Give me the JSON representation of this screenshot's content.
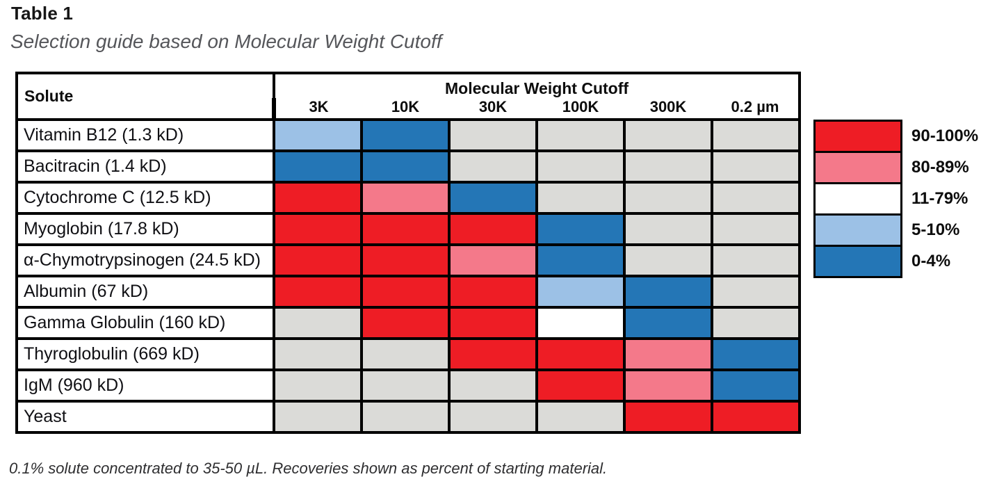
{
  "title": "Table 1",
  "subtitle": "Selection guide based on Molecular Weight Cutoff",
  "footnote": "0.1% solute concentrated to 35-50 µL. Recoveries shown as percent of starting material.",
  "table": {
    "solute_header": "Solute",
    "group_header": "Molecular Weight Cutoff",
    "columns": [
      "3K",
      "10K",
      "30K",
      "100K",
      "300K",
      "0.2 µm"
    ],
    "rows": [
      {
        "solute": "Vitamin B12 (1.3 kD)",
        "cells": [
          "5-10%",
          "0-4%",
          "n/a",
          "n/a",
          "n/a",
          "n/a"
        ]
      },
      {
        "solute": "Bacitracin (1.4 kD)",
        "cells": [
          "0-4%",
          "0-4%",
          "n/a",
          "n/a",
          "n/a",
          "n/a"
        ]
      },
      {
        "solute": "Cytochrome C (12.5 kD)",
        "cells": [
          "90-100%",
          "80-89%",
          "0-4%",
          "n/a",
          "n/a",
          "n/a"
        ]
      },
      {
        "solute": "Myoglobin (17.8 kD)",
        "cells": [
          "90-100%",
          "90-100%",
          "90-100%",
          "0-4%",
          "n/a",
          "n/a"
        ]
      },
      {
        "solute": "α-Chymotrypsinogen (24.5 kD)",
        "cells": [
          "90-100%",
          "90-100%",
          "80-89%",
          "0-4%",
          "n/a",
          "n/a"
        ]
      },
      {
        "solute": "Albumin (67 kD)",
        "cells": [
          "90-100%",
          "90-100%",
          "90-100%",
          "5-10%",
          "0-4%",
          "n/a"
        ]
      },
      {
        "solute": "Gamma Globulin (160 kD)",
        "cells": [
          "n/a",
          "90-100%",
          "90-100%",
          "11-79%",
          "0-4%",
          "n/a"
        ]
      },
      {
        "solute": "Thyroglobulin (669 kD)",
        "cells": [
          "n/a",
          "n/a",
          "90-100%",
          "90-100%",
          "80-89%",
          "0-4%"
        ]
      },
      {
        "solute": "IgM (960 kD)",
        "cells": [
          "n/a",
          "n/a",
          "n/a",
          "90-100%",
          "80-89%",
          "0-4%"
        ]
      },
      {
        "solute": "Yeast",
        "cells": [
          "n/a",
          "n/a",
          "n/a",
          "n/a",
          "90-100%",
          "90-100%"
        ]
      }
    ]
  },
  "legend": {
    "items": [
      {
        "label": "90-100%",
        "color": "#EE1D25"
      },
      {
        "label": "80-89%",
        "color": "#F4798A"
      },
      {
        "label": "11-79%",
        "color": "#FFFFFF"
      },
      {
        "label": "5-10%",
        "color": "#9CC1E6"
      },
      {
        "label": "0-4%",
        "color": "#2476B6"
      }
    ]
  },
  "colors": {
    "90-100%": "#EE1D25",
    "80-89%": "#F4798A",
    "11-79%": "#FFFFFF",
    "5-10%": "#9CC1E6",
    "0-4%": "#2476B6",
    "n/a": "#DBDBD8"
  },
  "chart_data": {
    "type": "heatmap",
    "title": "Table 1",
    "subtitle": "Selection guide based on Molecular Weight Cutoff",
    "x_label": "Molecular Weight Cutoff",
    "y_label": "Solute",
    "x_categories": [
      "3K",
      "10K",
      "30K",
      "100K",
      "300K",
      "0.2 µm"
    ],
    "y_categories": [
      "Vitamin B12 (1.3 kD)",
      "Bacitracin (1.4 kD)",
      "Cytochrome C (12.5 kD)",
      "Myoglobin (17.8 kD)",
      "α-Chymotrypsinogen (24.5 kD)",
      "Albumin (67 kD)",
      "Gamma Globulin (160 kD)",
      "Thyroglobulin (669 kD)",
      "IgM (960 kD)",
      "Yeast"
    ],
    "values": [
      [
        "5-10%",
        "0-4%",
        "n/a",
        "n/a",
        "n/a",
        "n/a"
      ],
      [
        "0-4%",
        "0-4%",
        "n/a",
        "n/a",
        "n/a",
        "n/a"
      ],
      [
        "90-100%",
        "80-89%",
        "0-4%",
        "n/a",
        "n/a",
        "n/a"
      ],
      [
        "90-100%",
        "90-100%",
        "90-100%",
        "0-4%",
        "n/a",
        "n/a"
      ],
      [
        "90-100%",
        "90-100%",
        "80-89%",
        "0-4%",
        "n/a",
        "n/a"
      ],
      [
        "90-100%",
        "90-100%",
        "90-100%",
        "5-10%",
        "0-4%",
        "n/a"
      ],
      [
        "n/a",
        "90-100%",
        "90-100%",
        "11-79%",
        "0-4%",
        "n/a"
      ],
      [
        "n/a",
        "n/a",
        "90-100%",
        "90-100%",
        "80-89%",
        "0-4%"
      ],
      [
        "n/a",
        "n/a",
        "n/a",
        "90-100%",
        "80-89%",
        "0-4%"
      ],
      [
        "n/a",
        "n/a",
        "n/a",
        "n/a",
        "90-100%",
        "90-100%"
      ]
    ],
    "legend": [
      "90-100%",
      "80-89%",
      "11-79%",
      "5-10%",
      "0-4%"
    ],
    "legend_position": "right",
    "note": "0.1% solute concentrated to 35-50 µL. Recoveries shown as percent of starting material."
  }
}
